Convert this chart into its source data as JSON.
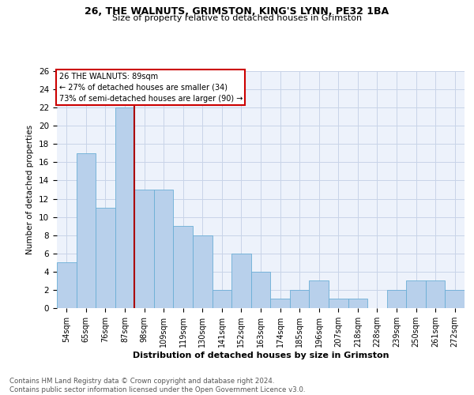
{
  "title1": "26, THE WALNUTS, GRIMSTON, KING'S LYNN, PE32 1BA",
  "title2": "Size of property relative to detached houses in Grimston",
  "xlabel": "Distribution of detached houses by size in Grimston",
  "ylabel": "Number of detached properties",
  "footnote": "Contains HM Land Registry data © Crown copyright and database right 2024.\nContains public sector information licensed under the Open Government Licence v3.0.",
  "bar_labels": [
    "54sqm",
    "65sqm",
    "76sqm",
    "87sqm",
    "98sqm",
    "109sqm",
    "119sqm",
    "130sqm",
    "141sqm",
    "152sqm",
    "163sqm",
    "174sqm",
    "185sqm",
    "196sqm",
    "207sqm",
    "218sqm",
    "228sqm",
    "239sqm",
    "250sqm",
    "261sqm",
    "272sqm"
  ],
  "bar_values": [
    5,
    17,
    11,
    22,
    13,
    13,
    9,
    8,
    2,
    6,
    4,
    1,
    2,
    3,
    1,
    1,
    0,
    2,
    3,
    3,
    2
  ],
  "bar_color": "#b8d0eb",
  "bar_edgecolor": "#6aaed6",
  "grid_color": "#c8d4e8",
  "background_color": "#edf2fb",
  "annotation_line1": "26 THE WALNUTS: 89sqm",
  "annotation_line2": "← 27% of detached houses are smaller (34)",
  "annotation_line3": "73% of semi-detached houses are larger (90) →",
  "annotation_box_color": "#ffffff",
  "annotation_border_color": "#cc0000",
  "vline_color": "#aa0000",
  "ylim": [
    0,
    26
  ],
  "yticks": [
    0,
    2,
    4,
    6,
    8,
    10,
    12,
    14,
    16,
    18,
    20,
    22,
    24,
    26
  ]
}
